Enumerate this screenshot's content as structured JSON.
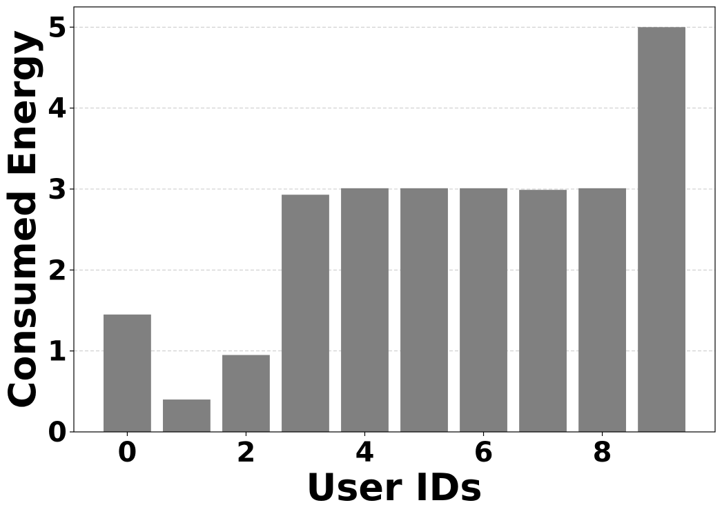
{
  "chart_data": {
    "type": "bar",
    "title": "",
    "xlabel": "User IDs",
    "ylabel": "Consumed Energy",
    "categories": [
      0,
      1,
      2,
      3,
      4,
      5,
      6,
      7,
      8,
      9
    ],
    "values": [
      1.45,
      0.4,
      0.95,
      2.93,
      3.01,
      3.01,
      3.01,
      2.99,
      3.01,
      5.0
    ],
    "xticks": [
      "0",
      "2",
      "4",
      "6",
      "8"
    ],
    "xtick_positions": [
      0,
      2,
      4,
      6,
      8
    ],
    "yticks": [
      "0",
      "1",
      "2",
      "3",
      "4",
      "5"
    ],
    "ytick_values": [
      0,
      1,
      2,
      3,
      4,
      5
    ],
    "xlim": [
      -0.9,
      9.9
    ],
    "ylim": [
      0,
      5.25
    ],
    "grid": "y-dashed",
    "legend": "none",
    "bar_color": "#808080",
    "grid_color": "#c8c8c8"
  }
}
